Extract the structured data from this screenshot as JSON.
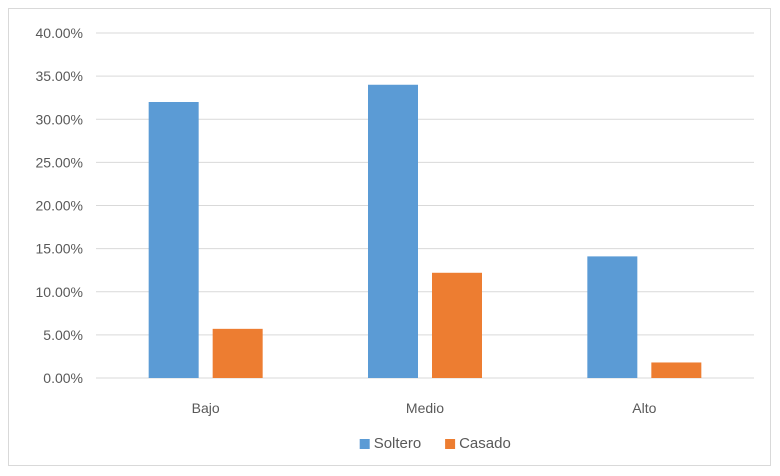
{
  "chart_data": {
    "type": "bar",
    "categories": [
      "Bajo",
      "Medio",
      "Alto"
    ],
    "series": [
      {
        "name": "Soltero",
        "color": "#5b9bd5",
        "values": [
          32.0,
          34.0,
          14.1
        ]
      },
      {
        "name": "Casado",
        "color": "#ed7d31",
        "values": [
          5.7,
          12.2,
          1.8
        ]
      }
    ],
    "ylim": [
      0,
      40
    ],
    "y_ticks": [
      0,
      5,
      10,
      15,
      20,
      25,
      30,
      35,
      40
    ],
    "y_tick_labels": [
      "0.00%",
      "5.00%",
      "10.00%",
      "15.00%",
      "20.00%",
      "25.00%",
      "30.00%",
      "35.00%",
      "40.00%"
    ],
    "grid": true,
    "legend_position": "bottom",
    "title": "",
    "xlabel": "",
    "ylabel": ""
  }
}
